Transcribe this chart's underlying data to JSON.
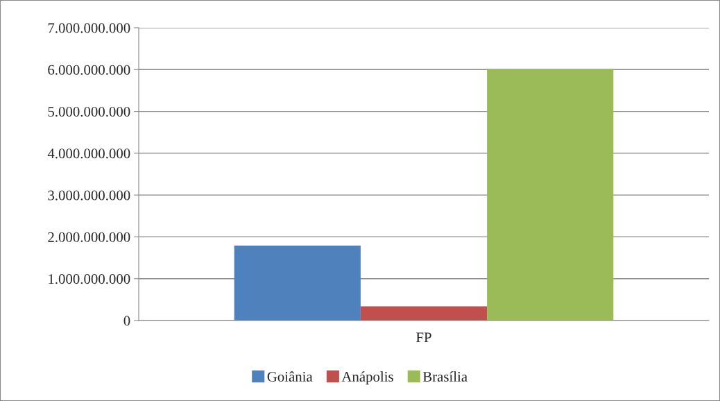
{
  "chart_data": {
    "type": "bar",
    "categories": [
      "FP"
    ],
    "series": [
      {
        "name": "Goiânia",
        "color": "#4f81bd",
        "values": [
          1790000000
        ]
      },
      {
        "name": "Anápolis",
        "color": "#c0504d",
        "values": [
          340000000
        ]
      },
      {
        "name": "Brasília",
        "color": "#9bbb59",
        "values": [
          6020000000
        ]
      }
    ],
    "ylim": [
      0,
      7000000000
    ],
    "yticks": [
      0,
      {
        "value": 1000000000,
        "label": "1.000.000.000"
      },
      {
        "value": 2000000000,
        "label": "2.000.000.000"
      },
      {
        "value": 3000000000,
        "label": "3.000.000.000"
      },
      {
        "value": 4000000000,
        "label": "4.000.000.000"
      },
      {
        "value": 5000000000,
        "label": "5.000.000.000"
      },
      {
        "value": 6000000000,
        "label": "6.000.000.000"
      },
      {
        "value": 7000000000,
        "label": "7.000.000.000"
      }
    ],
    "grid": "y",
    "legend": "bottom"
  }
}
